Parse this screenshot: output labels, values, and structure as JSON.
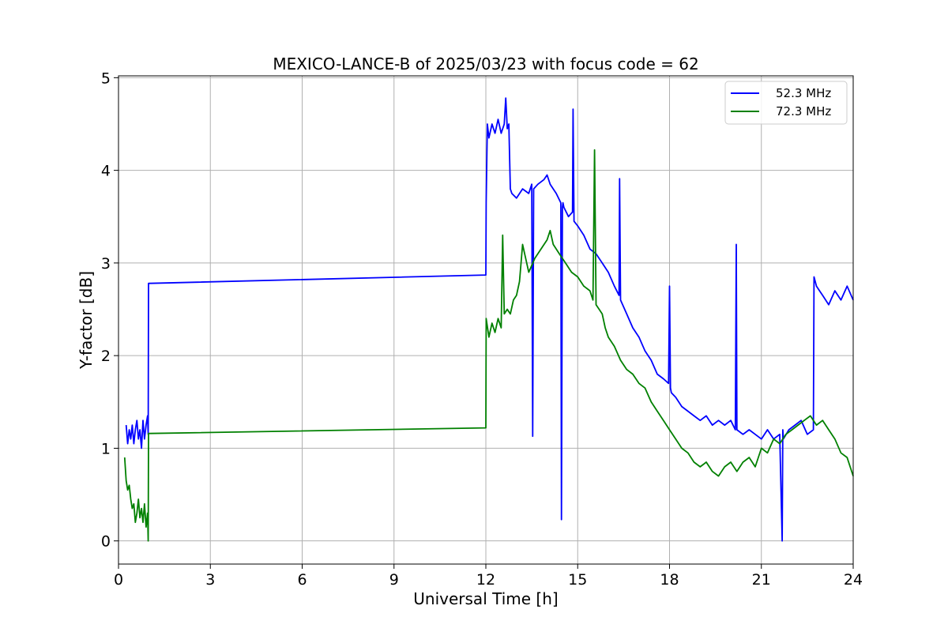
{
  "chart_data": {
    "type": "line",
    "title": "MEXICO-LANCE-B of 2025/03/23 with focus code = 62",
    "xlabel": "Universal Time [h]",
    "ylabel": "Y-factor [dB]",
    "xlim": [
      0,
      24
    ],
    "ylim": [
      -0.25,
      5.02
    ],
    "xticks": [
      0,
      3,
      6,
      9,
      12,
      15,
      18,
      21,
      24
    ],
    "yticks": [
      0,
      1,
      2,
      3,
      4,
      5
    ],
    "grid": true,
    "legend_position": "top-right",
    "series": [
      {
        "name": "52.3 MHz",
        "color": "#0000ff",
        "x": [
          0.25,
          0.3,
          0.35,
          0.4,
          0.45,
          0.5,
          0.55,
          0.6,
          0.65,
          0.7,
          0.75,
          0.8,
          0.85,
          0.9,
          0.95,
          0.97,
          0.98,
          1.0,
          12.0,
          12.01,
          12.05,
          12.1,
          12.2,
          12.3,
          12.4,
          12.5,
          12.6,
          12.65,
          12.7,
          12.75,
          12.8,
          12.85,
          13.0,
          13.2,
          13.4,
          13.5,
          13.53,
          13.56,
          13.7,
          13.9,
          14.0,
          14.1,
          14.3,
          14.45,
          14.47,
          14.5,
          14.52,
          14.55,
          14.7,
          14.83,
          14.85,
          14.88,
          15.0,
          15.2,
          15.4,
          15.6,
          15.8,
          16.0,
          16.2,
          16.35,
          16.37,
          16.4,
          16.6,
          16.8,
          17.0,
          17.2,
          17.4,
          17.6,
          17.8,
          17.97,
          18.0,
          18.03,
          18.06,
          18.2,
          18.4,
          18.6,
          18.8,
          19.0,
          19.2,
          19.4,
          19.6,
          19.8,
          20.0,
          20.15,
          20.18,
          20.2,
          20.4,
          20.6,
          20.8,
          21.0,
          21.2,
          21.4,
          21.6,
          21.68,
          21.7,
          21.72,
          21.9,
          22.1,
          22.3,
          22.5,
          22.7,
          22.72,
          22.8,
          22.9,
          23.0,
          23.2,
          23.4,
          23.6,
          23.8,
          24.0
        ],
        "y": [
          1.25,
          1.05,
          1.2,
          1.1,
          1.25,
          1.05,
          1.2,
          1.3,
          1.1,
          1.2,
          1.0,
          1.3,
          1.1,
          1.25,
          1.35,
          1.15,
          2.78,
          2.78,
          2.87,
          3.65,
          4.5,
          4.35,
          4.5,
          4.4,
          4.55,
          4.4,
          4.5,
          4.78,
          4.45,
          4.5,
          3.8,
          3.75,
          3.7,
          3.8,
          3.75,
          3.85,
          1.13,
          3.8,
          3.85,
          3.9,
          3.95,
          3.85,
          3.75,
          3.65,
          0.23,
          3.6,
          3.65,
          3.6,
          3.5,
          3.55,
          4.66,
          3.45,
          3.4,
          3.3,
          3.15,
          3.1,
          3.0,
          2.9,
          2.75,
          2.65,
          3.91,
          2.6,
          2.45,
          2.3,
          2.2,
          2.05,
          1.95,
          1.8,
          1.75,
          1.7,
          2.75,
          1.65,
          1.6,
          1.55,
          1.45,
          1.4,
          1.35,
          1.3,
          1.35,
          1.25,
          1.3,
          1.25,
          1.3,
          1.2,
          3.2,
          1.2,
          1.15,
          1.2,
          1.15,
          1.1,
          1.2,
          1.1,
          1.15,
          0.0,
          1.2,
          1.1,
          1.2,
          1.25,
          1.3,
          1.15,
          1.2,
          2.85,
          2.75,
          2.7,
          2.65,
          2.55,
          2.7,
          2.6,
          2.75,
          2.6
        ]
      },
      {
        "name": "72.3 MHz",
        "color": "#008000",
        "x": [
          0.2,
          0.25,
          0.3,
          0.35,
          0.4,
          0.45,
          0.5,
          0.55,
          0.6,
          0.65,
          0.7,
          0.75,
          0.8,
          0.85,
          0.9,
          0.95,
          0.97,
          0.98,
          1.0,
          12.0,
          12.01,
          12.1,
          12.2,
          12.3,
          12.4,
          12.5,
          12.55,
          12.6,
          12.7,
          12.8,
          12.9,
          13.0,
          13.1,
          13.2,
          13.4,
          13.6,
          13.8,
          14.0,
          14.1,
          14.2,
          14.4,
          14.6,
          14.8,
          15.0,
          15.2,
          15.4,
          15.5,
          15.55,
          15.6,
          15.7,
          15.8,
          15.9,
          16.0,
          16.2,
          16.4,
          16.6,
          16.8,
          17.0,
          17.2,
          17.4,
          17.6,
          17.8,
          18.0,
          18.2,
          18.4,
          18.6,
          18.8,
          19.0,
          19.2,
          19.4,
          19.6,
          19.8,
          20.0,
          20.2,
          20.4,
          20.6,
          20.8,
          21.0,
          21.2,
          21.4,
          21.6,
          21.8,
          22.0,
          22.2,
          22.4,
          22.6,
          22.8,
          23.0,
          23.2,
          23.4,
          23.6,
          23.8,
          24.0
        ],
        "y": [
          0.9,
          0.65,
          0.55,
          0.6,
          0.45,
          0.35,
          0.4,
          0.2,
          0.3,
          0.45,
          0.25,
          0.35,
          0.2,
          0.4,
          0.15,
          0.3,
          0.0,
          1.16,
          1.16,
          1.22,
          2.4,
          2.2,
          2.35,
          2.25,
          2.4,
          2.3,
          3.3,
          2.45,
          2.5,
          2.45,
          2.6,
          2.65,
          2.8,
          3.2,
          2.9,
          3.05,
          3.15,
          3.25,
          3.35,
          3.2,
          3.1,
          3.0,
          2.9,
          2.85,
          2.75,
          2.7,
          2.6,
          4.22,
          2.55,
          2.5,
          2.45,
          2.3,
          2.2,
          2.1,
          1.95,
          1.85,
          1.8,
          1.7,
          1.65,
          1.5,
          1.4,
          1.3,
          1.2,
          1.1,
          1.0,
          0.95,
          0.85,
          0.8,
          0.85,
          0.75,
          0.7,
          0.8,
          0.85,
          0.75,
          0.85,
          0.9,
          0.8,
          1.0,
          0.95,
          1.1,
          1.05,
          1.15,
          1.2,
          1.25,
          1.3,
          1.35,
          1.25,
          1.3,
          1.2,
          1.1,
          0.95,
          0.9,
          0.7
        ]
      }
    ]
  }
}
